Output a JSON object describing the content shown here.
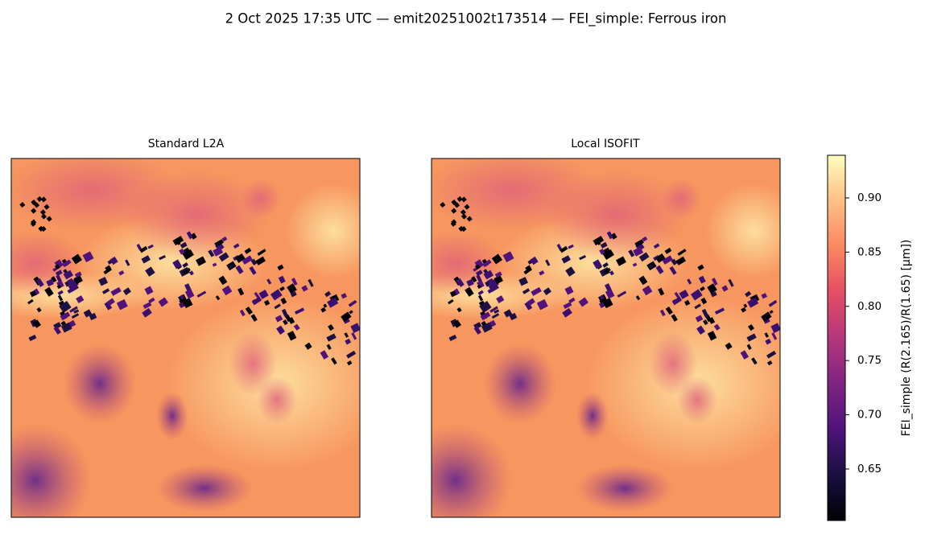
{
  "title": "2 Oct 2025 17:35 UTC — emit20251002t173514 — FEI_simple: Ferrous iron",
  "chart_data": [
    {
      "type": "image",
      "title": "Standard L2A"
    },
    {
      "type": "image",
      "title": "Local ISOFIT"
    }
  ],
  "colorbar": {
    "label": "FEI_simple  (R(2.165)/R(1.65)  [µm])",
    "colormap": "magma",
    "clim": [
      0.6025,
      0.9393
    ],
    "ticks": [
      0.65,
      {
        "value": 0.7,
        "label": "0.70"
      },
      0.75,
      {
        "value": 0.8,
        "label": "0.80"
      },
      0.85,
      {
        "value": 0.9,
        "label": "0.90"
      }
    ]
  }
}
